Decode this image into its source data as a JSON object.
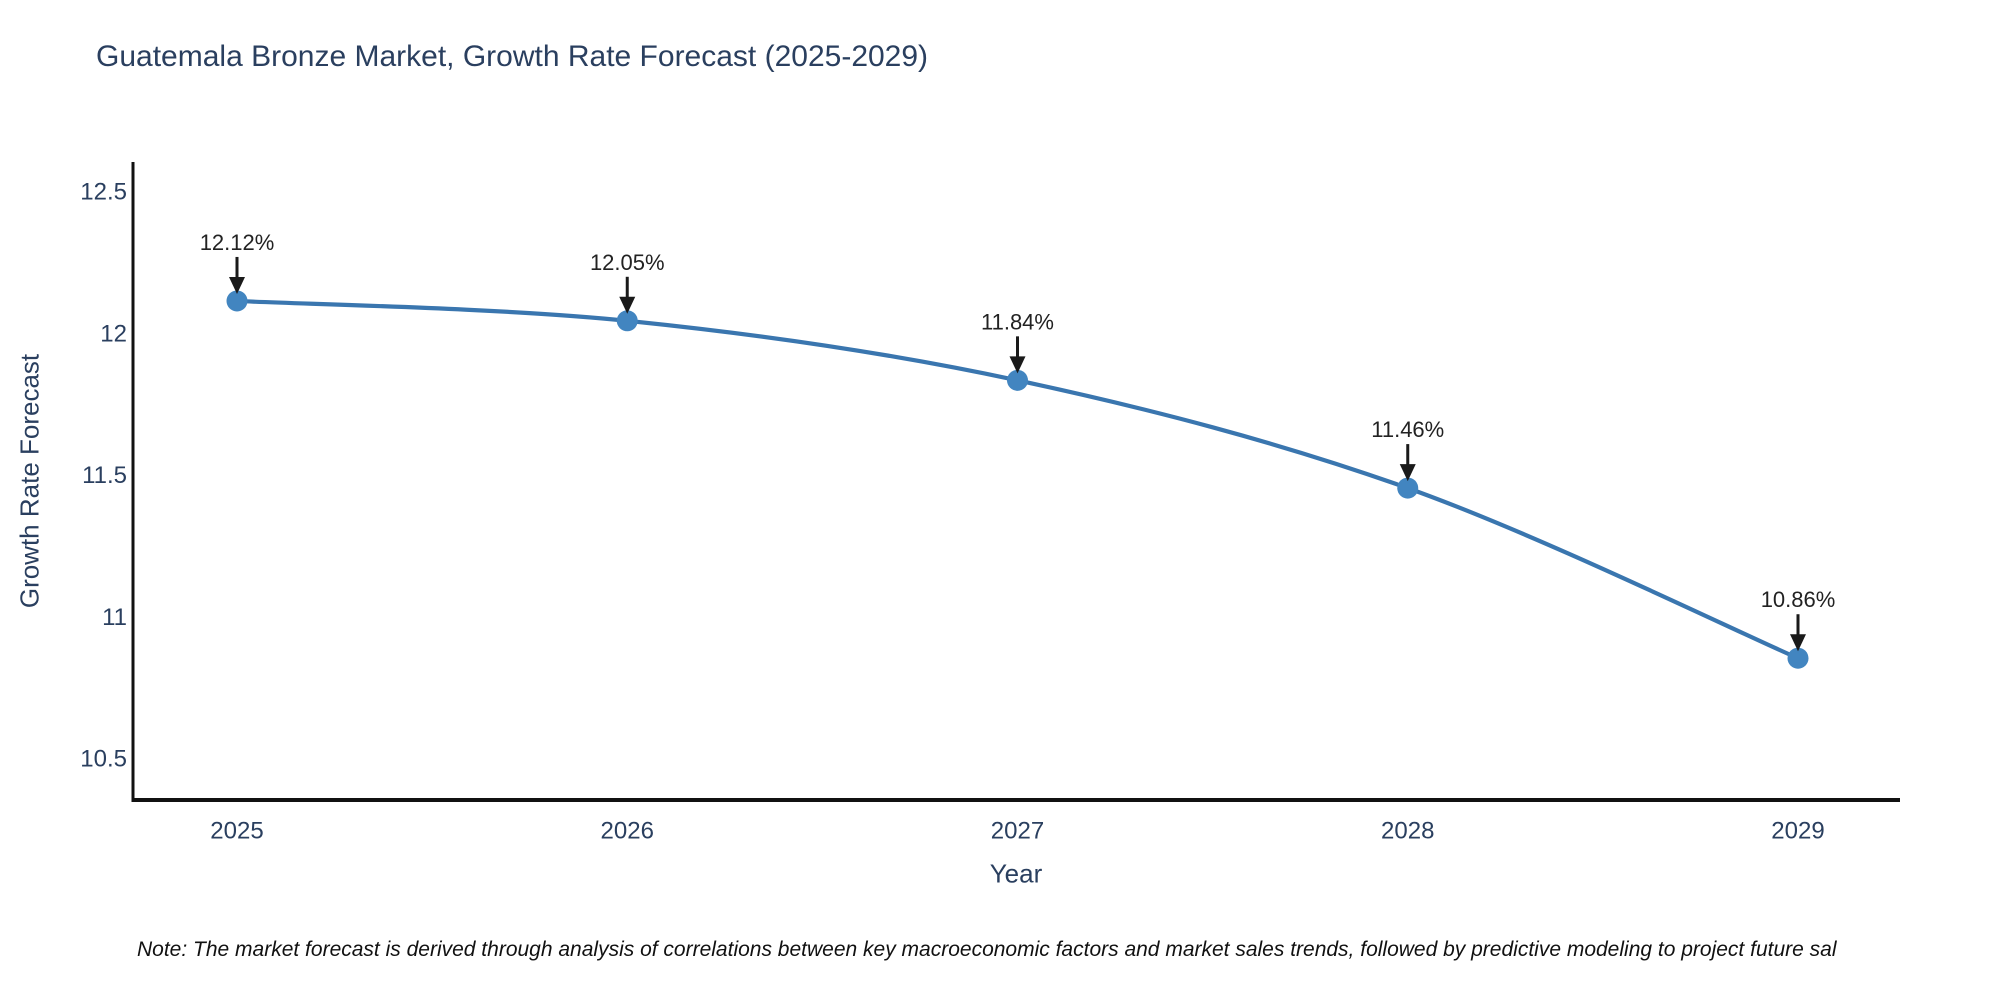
{
  "title": "Guatemala Bronze Market, Growth Rate Forecast (2025-2029)",
  "note": "Note: The market forecast is derived through analysis of correlations between key macroeconomic factors and market sales trends, followed by predictive modeling to project future sal",
  "chart_data": {
    "type": "line",
    "title": "Guatemala Bronze Market, Growth Rate Forecast (2025-2029)",
    "categories": [
      "2025",
      "2026",
      "2027",
      "2028",
      "2029"
    ],
    "series": [
      {
        "name": "Growth Rate Forecast",
        "values": [
          12.12,
          12.05,
          11.84,
          11.46,
          10.86
        ]
      }
    ],
    "point_labels": [
      "12.12%",
      "12.05%",
      "11.84%",
      "11.46%",
      "10.86%"
    ],
    "xlabel": "Year",
    "ylabel": "Growth Rate Forecast",
    "yticks": [
      10.5,
      11,
      11.5,
      12,
      12.5
    ],
    "ylim": [
      10.36,
      12.61
    ],
    "grid": false,
    "legend": false,
    "annotations_have_arrows": true,
    "colors": {
      "line": "#3A76AF",
      "marker": "#4285C0",
      "axis": "#111111",
      "tick_text": "#2a3f5f",
      "annotation_text": "#222222",
      "arrow": "#1a1a1a",
      "title_text": "#2a3f5f",
      "background": "#ffffff"
    }
  }
}
